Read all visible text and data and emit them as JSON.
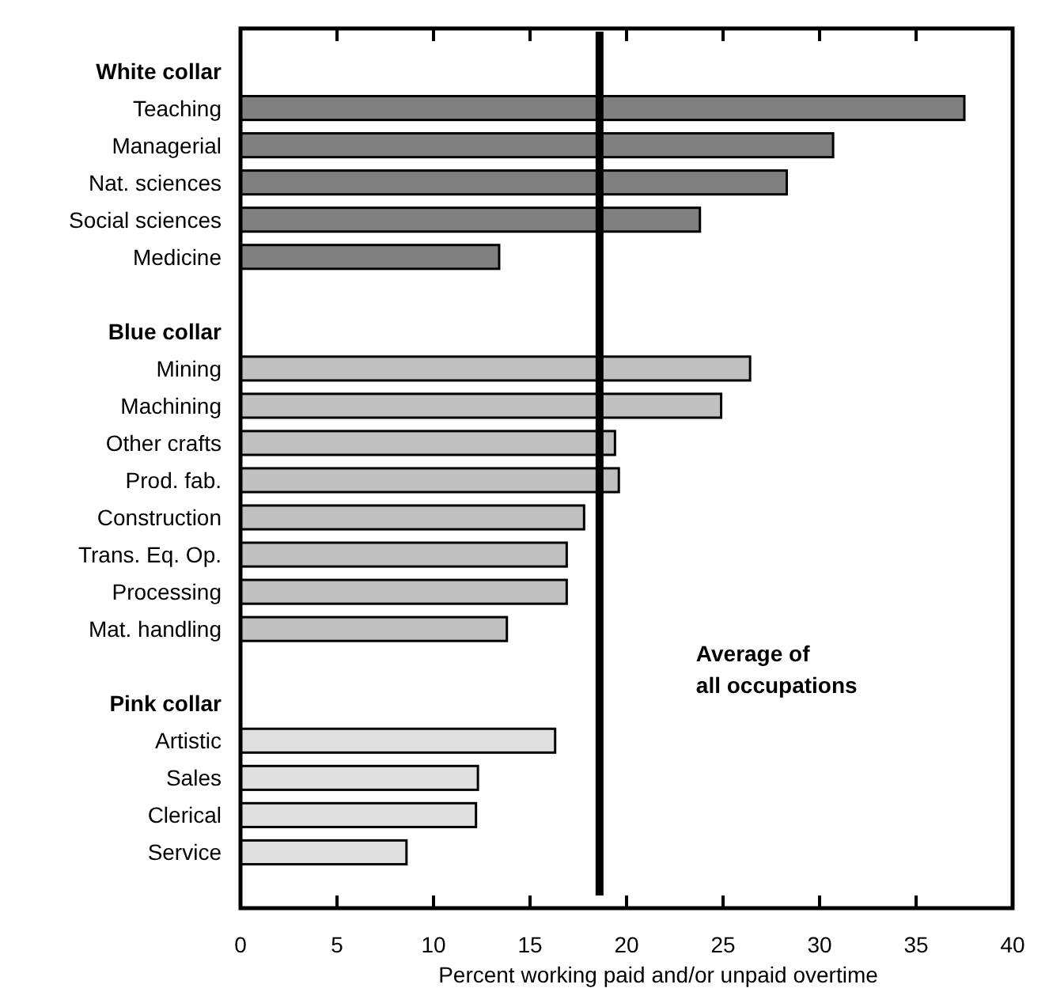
{
  "chart_data": {
    "type": "bar",
    "orientation": "horizontal",
    "xlabel": "Percent working paid and/or unpaid overtime",
    "categories": [
      "White collar",
      "Teaching",
      "Managerial",
      "Nat. sciences",
      "Social sciences",
      "Medicine",
      null,
      "Blue collar",
      "Mining",
      "Machining",
      "Other crafts",
      "Prod. fab.",
      "Construction",
      "Trans. Eq. Op.",
      "Processing",
      "Mat. handling",
      null,
      "Pink collar",
      "Artistic",
      "Sales",
      "Clerical",
      "Service",
      null
    ],
    "values": [
      0,
      37.5,
      30.7,
      28.3,
      23.8,
      13.4,
      0,
      0,
      26.4,
      24.9,
      19.4,
      19.6,
      17.8,
      16.9,
      16.9,
      13.8,
      0,
      0,
      16.3,
      12.3,
      12.2,
      8.6,
      0
    ],
    "colors": [
      "#808080",
      "#808080",
      "#808080",
      "#808080",
      "#808080",
      "#808080",
      "#808080",
      "#c0c0c0",
      "#c0c0c0",
      "#c0c0c0",
      "#c0c0c0",
      "#c0c0c0",
      "#c0c0c0",
      "#c0c0c0",
      "#c0c0c0",
      "#c0c0c0",
      "#c0c0c0",
      "#e0e0e0",
      "#e0e0e0",
      "#e0e0e0",
      "#e0e0e0",
      "#e0e0e0",
      "#e0e0e0"
    ],
    "xlim": [
      0,
      40
    ],
    "xticks": [
      0,
      5,
      10,
      15,
      20,
      25,
      30,
      35,
      40
    ],
    "ref_lines": [
      {
        "axis": "x",
        "value": 18.6,
        "label": "Average of\nall occupations",
        "color": "#000000"
      }
    ],
    "grid": false
  }
}
